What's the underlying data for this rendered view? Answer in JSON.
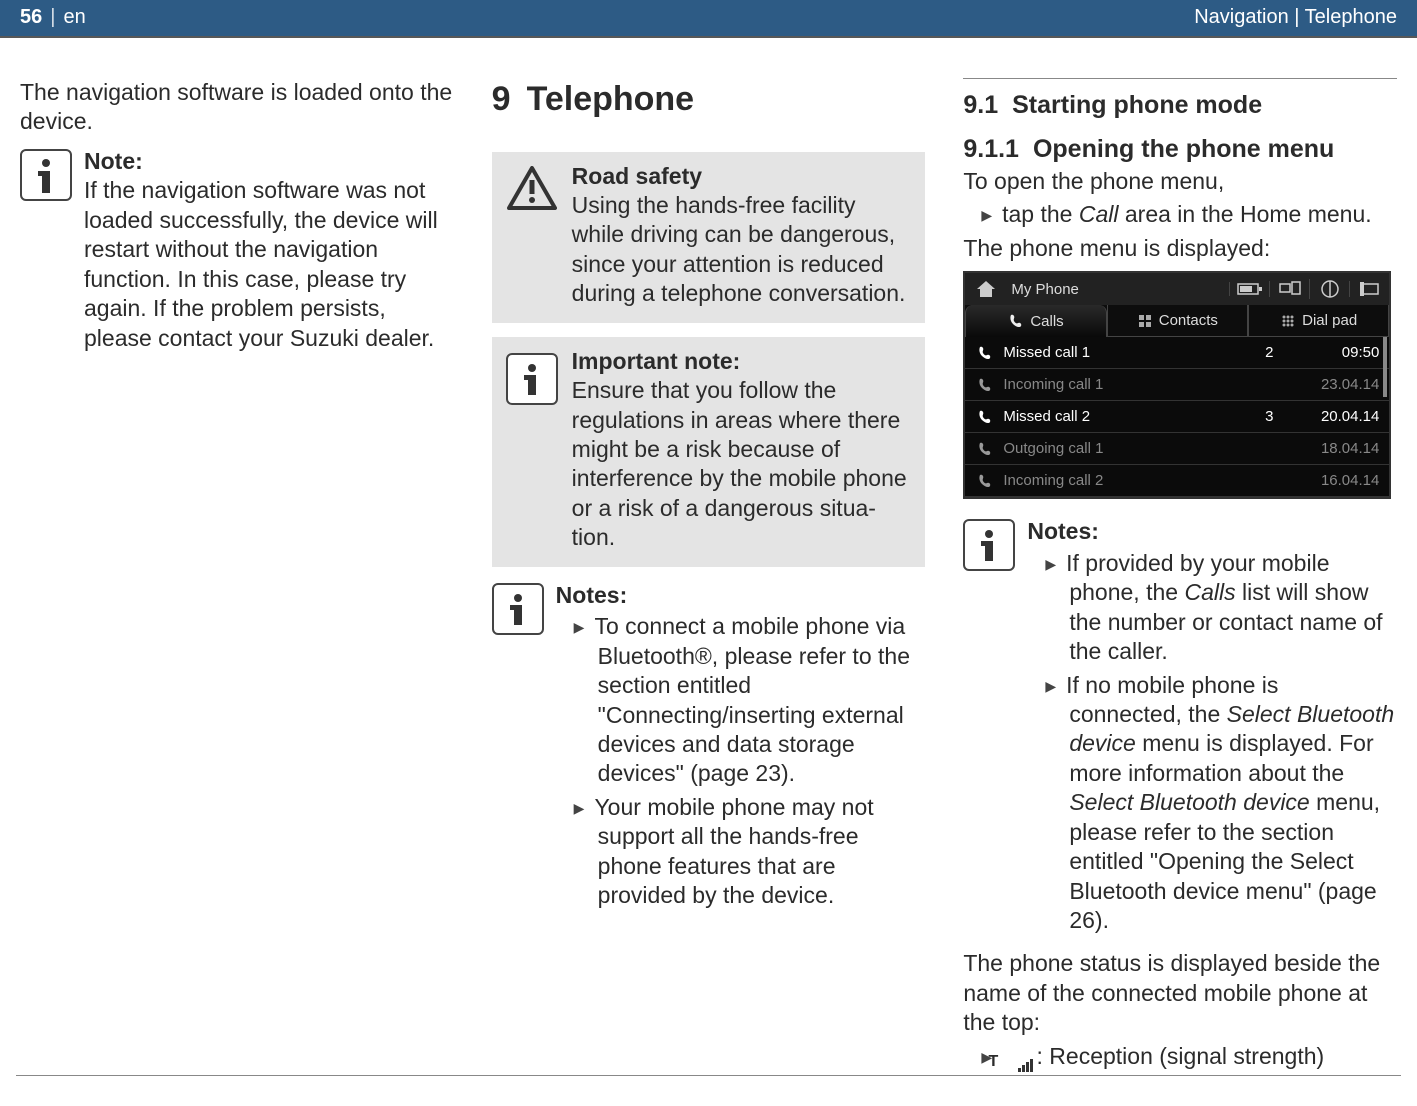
{
  "header": {
    "page_num": "56",
    "sep": "|",
    "lang": "en",
    "right": "Navigation | Telephone",
    "bg": "#2d5b85",
    "fg": "#ffffff"
  },
  "col1": {
    "intro": "The navigation software is loaded onto the device.",
    "note_title": "Note:",
    "note_body": "If the navigation software was not loaded successfully, the device will restart without the navigation function. In this case, please try again. If the problem persists, please contact your Suzuki dealer."
  },
  "col2": {
    "chapter_num": "9",
    "chapter_title": "Telephone",
    "road_title": "Road safety",
    "road_body": "Using the hands-free facility while driving can be dangerous, since your attention is reduced during a telephone conversation.",
    "imp_title": "Important note:",
    "imp_body": "Ensure that you follow the regulations in areas where there might be a risk because of interference by the mobile phone or a risk of a dangerous situa­tion.",
    "notes_title": "Notes:",
    "notes_items": [
      "To connect a mobile phone via Bluetooth®, please refer to the section entitled \"Connecting/insert­ing external devices and data stor­age devices\" (page 23).",
      "Your mobile phone may not support all the hands-free phone features that are provided by the device."
    ]
  },
  "col3": {
    "h2_num": "9.1",
    "h2_title": "Starting phone mode",
    "h3_num": "9.1.1",
    "h3_title": "Opening the phone menu",
    "open_line": "To open the phone menu,",
    "tap_pre": "tap the ",
    "tap_ital": "Call",
    "tap_post": " area in the Home menu.",
    "displayed": "The phone menu is displayed:",
    "phone": {
      "title": "My Phone",
      "tab_calls": "Calls",
      "tab_contacts": "Contacts",
      "tab_dialpad": "Dial pad",
      "rows": [
        {
          "label": "Missed call 1",
          "count": "2",
          "time": "09:50",
          "bright": true
        },
        {
          "label": "Incoming call 1",
          "count": "",
          "time": "23.04.14",
          "bright": false
        },
        {
          "label": "Missed call 2",
          "count": "3",
          "time": "20.04.14",
          "bright": true
        },
        {
          "label": "Outgoing call 1",
          "count": "",
          "time": "18.04.14",
          "bright": false
        },
        {
          "label": "Incoming call 2",
          "count": "",
          "time": "16.04.14",
          "bright": false
        }
      ]
    },
    "notes_title": "Notes:",
    "note1_pre": "If provided by your mobile phone, the ",
    "note1_ital": "Calls",
    "note1_post": " list will show the number or contact name of the caller.",
    "note2_pre": "If no mobile phone is connected, the ",
    "note2_ital1": "Select Bluetooth device",
    "note2_mid": " menu is displayed. For more information about the ",
    "note2_ital2": "Select Bluetooth device",
    "note2_post": " menu, please refer to the section entitled \"Opening the Select Blue­tooth device menu\" (page 26).",
    "status_intro": "The phone status is displayed beside the name of the connected mobile phone at the top:",
    "reception": ": Reception (signal strength)"
  }
}
